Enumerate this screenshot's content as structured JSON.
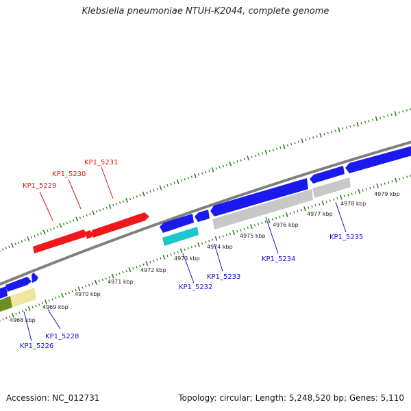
{
  "title": "Klebsiella pneumoniae NTUH-K2044, complete genome",
  "footer": {
    "accession": "Accession: NC_012731",
    "summary": "Topology: circular; Length: 5,248,520 bp; Genes: 5,110"
  },
  "colors": {
    "backbone": "#7f7f7f",
    "ticks": "#2e7d1f",
    "red": "#f01818",
    "blue": "#1a1aee",
    "cyan": "#18c8cc",
    "grey": "#c8c8c8",
    "olive": "#6b8e23",
    "khaki": "#efe6a0",
    "label_red": "#e01010",
    "label_blue": "#1010cc"
  },
  "tick_labels": [
    "4968 kbp",
    "4969 kbp",
    "4970 kbp",
    "4971 kbp",
    "4972 kbp",
    "4973 kbp",
    "4974 kbp",
    "4975 kbp",
    "4976 kbp",
    "4977 kbp",
    "4978 kbp",
    "4979 kbp"
  ],
  "gene_labels": {
    "KP1_5226": "KP1_5226",
    "KP1_5228": "KP1_5228",
    "KP1_5229": "KP1_5229",
    "KP1_5230": "KP1_5230",
    "KP1_5231": "KP1_5231",
    "KP1_5232": "KP1_5232",
    "KP1_5233": "KP1_5233",
    "KP1_5234": "KP1_5234",
    "KP1_5235": "KP1_5235"
  }
}
